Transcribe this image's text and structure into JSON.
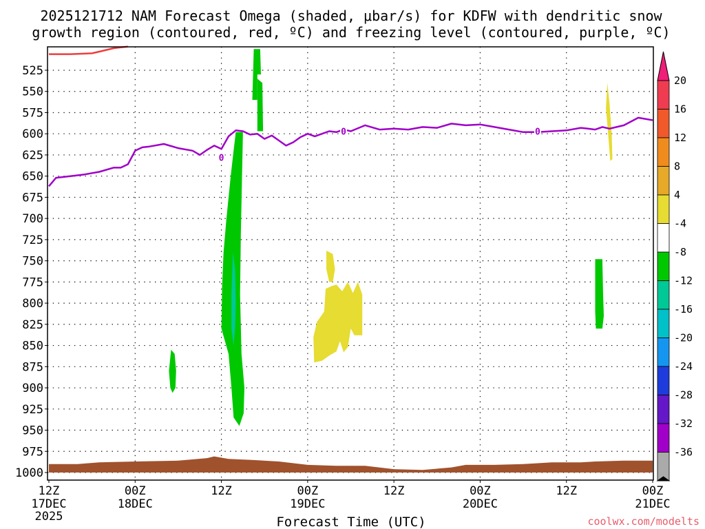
{
  "chart_data": {
    "type": "heatmap",
    "title_line1": "2025121712 NAM Forecast Omega (shaded, μbar/s) for KDFW with dendritic snow",
    "title_line2": "growth region (contoured, red, ºC) and freezing level (contoured, purple, ºC)",
    "xlabel": "Forecast Time (UTC)",
    "credit": "coolwx.com/modelts",
    "y_ticks": [
      "525",
      "550",
      "575",
      "600",
      "625",
      "650",
      "675",
      "700",
      "725",
      "750",
      "775",
      "800",
      "825",
      "850",
      "875",
      "900",
      "925",
      "950",
      "975",
      "1000"
    ],
    "x_ticks": [
      {
        "hour": "12Z",
        "date": "17DEC",
        "year": "2025"
      },
      {
        "hour": "00Z",
        "date": "18DEC",
        "year": ""
      },
      {
        "hour": "12Z",
        "date": "",
        "year": ""
      },
      {
        "hour": "00Z",
        "date": "19DEC",
        "year": ""
      },
      {
        "hour": "12Z",
        "date": "",
        "year": ""
      },
      {
        "hour": "00Z",
        "date": "20DEC",
        "year": ""
      },
      {
        "hour": "12Z",
        "date": "",
        "year": ""
      },
      {
        "hour": "00Z",
        "date": "21DEC",
        "year": ""
      }
    ],
    "colorbar_labels": [
      "20",
      "16",
      "12",
      "8",
      "4",
      "-4",
      "-8",
      "-12",
      "-16",
      "-20",
      "-24",
      "-28",
      "-32",
      "-36"
    ],
    "colorbar_colors": [
      "#f03c50",
      "#f05a2a",
      "#f08c1e",
      "#e6aa28",
      "#e6dc32",
      "#ffffff",
      "#00c800",
      "#00c896",
      "#00c0c8",
      "#1496f0",
      "#1e3cdc",
      "#6418c8",
      "#a000c8",
      "#aaaaaa"
    ],
    "top_arrow_color": "#f01e78",
    "bottom_arrow_color": "#000000",
    "freezing_level_label": "0",
    "freezing_level_color": "#a000c8",
    "dgz_color": "#f03c3c",
    "ground_color": "#a0522d",
    "x_range_hours": [
      0,
      84
    ],
    "freezing_level_mb": [
      [
        0,
        662
      ],
      [
        1,
        652
      ],
      [
        3,
        650
      ],
      [
        5,
        648
      ],
      [
        7,
        645
      ],
      [
        9,
        640
      ],
      [
        10,
        640
      ],
      [
        11,
        636
      ],
      [
        12,
        620
      ],
      [
        13,
        616
      ],
      [
        14,
        615
      ],
      [
        16,
        612
      ],
      [
        18,
        617
      ],
      [
        20,
        620
      ],
      [
        21,
        625
      ],
      [
        22,
        619
      ],
      [
        23,
        614
      ],
      [
        24,
        618
      ],
      [
        25,
        603
      ],
      [
        26,
        596
      ],
      [
        27,
        597
      ],
      [
        28,
        601
      ],
      [
        29,
        600
      ],
      [
        30,
        606
      ],
      [
        31,
        602
      ],
      [
        32,
        608
      ],
      [
        33,
        614
      ],
      [
        34,
        610
      ],
      [
        35,
        604
      ],
      [
        36,
        600
      ],
      [
        37,
        603
      ],
      [
        38,
        600
      ],
      [
        39,
        597
      ],
      [
        40,
        598
      ],
      [
        41,
        595
      ],
      [
        42,
        597
      ],
      [
        44,
        590
      ],
      [
        46,
        595
      ],
      [
        48,
        594
      ],
      [
        50,
        595
      ],
      [
        52,
        592
      ],
      [
        54,
        593
      ],
      [
        56,
        588
      ],
      [
        58,
        590
      ],
      [
        60,
        589
      ],
      [
        62,
        592
      ],
      [
        64,
        595
      ],
      [
        66,
        598
      ],
      [
        68,
        598
      ],
      [
        70,
        597
      ],
      [
        72,
        596
      ],
      [
        74,
        593
      ],
      [
        75,
        594
      ],
      [
        76,
        595
      ],
      [
        77,
        592
      ],
      [
        78,
        594
      ],
      [
        80,
        590
      ],
      [
        82,
        581
      ],
      [
        84,
        584
      ]
    ],
    "freezing_level_label_positions": [
      [
        24,
        628
      ],
      [
        41,
        597
      ],
      [
        68,
        597
      ]
    ],
    "dgz_contour_mb": [
      [
        0,
        506
      ],
      [
        3,
        506
      ],
      [
        6,
        505
      ],
      [
        7,
        503
      ],
      [
        8,
        501
      ],
      [
        9,
        499
      ],
      [
        10,
        498
      ],
      [
        11,
        497
      ]
    ],
    "ground_top_mb": [
      [
        0,
        990
      ],
      [
        4,
        990
      ],
      [
        7,
        988
      ],
      [
        12,
        987
      ],
      [
        18,
        986
      ],
      [
        22,
        983
      ],
      [
        23,
        981
      ],
      [
        25,
        984
      ],
      [
        28,
        985
      ],
      [
        32,
        987
      ],
      [
        36,
        991
      ],
      [
        40,
        992
      ],
      [
        44,
        992
      ],
      [
        48,
        996
      ],
      [
        52,
        997
      ],
      [
        56,
        994
      ],
      [
        58,
        991
      ],
      [
        62,
        991
      ],
      [
        66,
        990
      ],
      [
        70,
        988
      ],
      [
        74,
        988
      ],
      [
        76,
        987
      ],
      [
        80,
        986
      ],
      [
        84,
        986
      ]
    ],
    "omega_regions": [
      {
        "value": "-4",
        "color": "#00c800",
        "points": [
          [
            28.5,
            500
          ],
          [
            29.4,
            500
          ],
          [
            29.5,
            530
          ],
          [
            29.0,
            530
          ],
          [
            29.0,
            560
          ],
          [
            28.3,
            560
          ]
        ]
      },
      {
        "value": "-4",
        "color": "#00c800",
        "points": [
          [
            29.0,
            535
          ],
          [
            29.7,
            540
          ],
          [
            29.8,
            597
          ],
          [
            29.0,
            597
          ]
        ]
      },
      {
        "value": "-4",
        "color": "#00c800",
        "points": [
          [
            26.0,
            598
          ],
          [
            27.0,
            598
          ],
          [
            26.9,
            640
          ],
          [
            26.7,
            720
          ],
          [
            26.6,
            790
          ],
          [
            26.8,
            860
          ],
          [
            27.2,
            900
          ],
          [
            27.1,
            930
          ],
          [
            26.5,
            945
          ],
          [
            25.7,
            935
          ],
          [
            25.4,
            900
          ],
          [
            25.0,
            860
          ],
          [
            24.0,
            830
          ],
          [
            24.1,
            780
          ],
          [
            24.3,
            740
          ],
          [
            24.7,
            700
          ],
          [
            25.3,
            650
          ],
          [
            25.7,
            620
          ]
        ]
      },
      {
        "value": "-8",
        "color": "#00c896",
        "points": [
          [
            25.6,
            740
          ],
          [
            25.9,
            760
          ],
          [
            26.0,
            800
          ],
          [
            25.9,
            830
          ],
          [
            25.7,
            850
          ],
          [
            25.4,
            830
          ],
          [
            25.4,
            790
          ]
        ]
      },
      {
        "value": "-4",
        "color": "#00c800",
        "points": [
          [
            17.0,
            855
          ],
          [
            17.5,
            860
          ],
          [
            17.7,
            880
          ],
          [
            17.6,
            900
          ],
          [
            17.2,
            906
          ],
          [
            16.9,
            900
          ],
          [
            16.7,
            880
          ]
        ]
      },
      {
        "value": "-4",
        "color": "#00c800",
        "points": [
          [
            76.0,
            748
          ],
          [
            77.0,
            748
          ],
          [
            77.1,
            790
          ],
          [
            77.2,
            815
          ],
          [
            77.0,
            830
          ],
          [
            76.1,
            830
          ],
          [
            76.0,
            810
          ]
        ]
      },
      {
        "value": "4",
        "color": "#e6dc32",
        "points": [
          [
            77.7,
            540
          ],
          [
            78.0,
            565
          ],
          [
            78.3,
            600
          ],
          [
            78.4,
            630
          ],
          [
            78.1,
            632
          ],
          [
            77.8,
            600
          ],
          [
            77.5,
            570
          ]
        ]
      },
      {
        "value": "4",
        "color": "#e6dc32",
        "points": [
          [
            38.6,
            738
          ],
          [
            39.5,
            742
          ],
          [
            39.8,
            760
          ],
          [
            39.5,
            775
          ],
          [
            39.0,
            775
          ],
          [
            38.6,
            760
          ]
        ]
      },
      {
        "value": "4",
        "color": "#e6dc32",
        "points": [
          [
            38.5,
            783
          ],
          [
            39.3,
            780
          ],
          [
            40.0,
            778
          ],
          [
            40.8,
            786
          ],
          [
            41.6,
            775
          ],
          [
            42.3,
            788
          ],
          [
            43.0,
            775
          ],
          [
            43.6,
            790
          ],
          [
            43.6,
            838
          ],
          [
            42.5,
            838
          ],
          [
            42.0,
            830
          ],
          [
            41.6,
            852
          ],
          [
            41.0,
            858
          ],
          [
            40.5,
            845
          ],
          [
            40.0,
            857
          ],
          [
            39.0,
            862
          ],
          [
            38.0,
            868
          ],
          [
            36.9,
            870
          ],
          [
            36.8,
            840
          ],
          [
            37.3,
            822
          ],
          [
            38.3,
            810
          ]
        ]
      }
    ]
  }
}
